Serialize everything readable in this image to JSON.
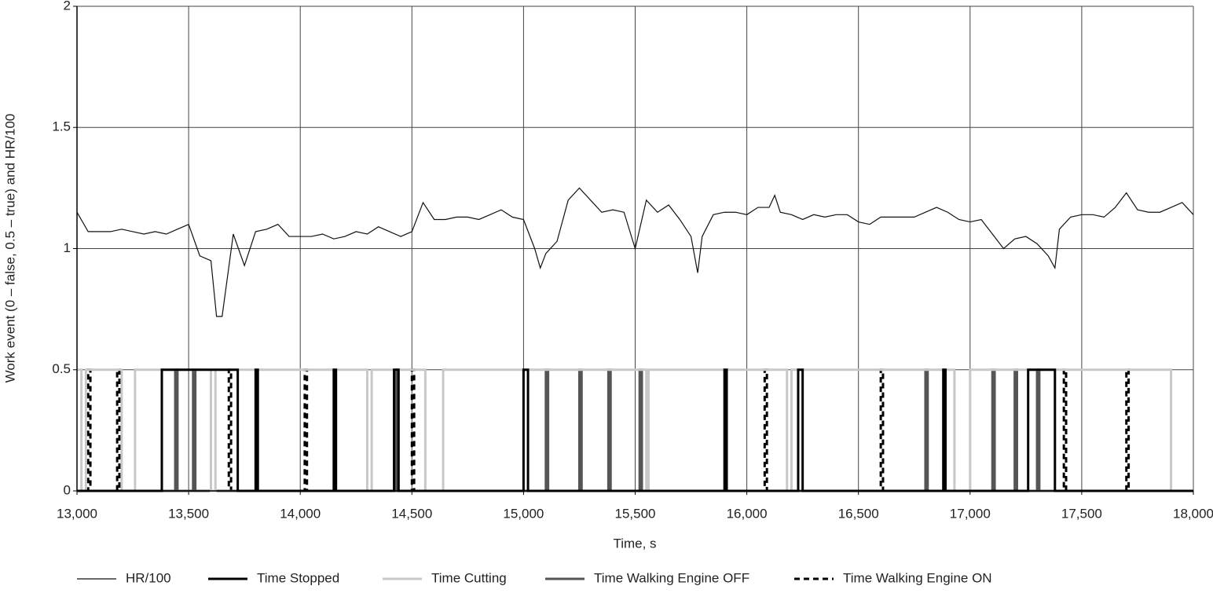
{
  "chart_data": {
    "type": "line",
    "x_label": "Time, s",
    "y_label": "Work event (0 – false, 0.5 – true) and HR/100",
    "xlim": [
      13000,
      18000
    ],
    "xticks": [
      {
        "value": 13000,
        "label": "13,000"
      },
      {
        "value": 13500,
        "label": "13,500"
      },
      {
        "value": 14000,
        "label": "14,000"
      },
      {
        "value": 14500,
        "label": "14,500"
      },
      {
        "value": 15000,
        "label": "15,000"
      },
      {
        "value": 15500,
        "label": "15,500"
      },
      {
        "value": 16000,
        "label": "16,000"
      },
      {
        "value": 16500,
        "label": "16,500"
      },
      {
        "value": 17000,
        "label": "17,000"
      },
      {
        "value": 17500,
        "label": "17,500"
      },
      {
        "value": 18000,
        "label": "18,000"
      }
    ],
    "ylim": [
      0,
      2
    ],
    "yticks": [
      0,
      0.5,
      1,
      1.5,
      2
    ],
    "grid": true,
    "legend": "bottom",
    "series": [
      {
        "name": "HR/100",
        "color": "#111111",
        "step": false,
        "x": [
          13000,
          13050,
          13100,
          13150,
          13200,
          13250,
          13300,
          13350,
          13400,
          13450,
          13500,
          13550,
          13600,
          13625,
          13650,
          13700,
          13750,
          13800,
          13850,
          13900,
          13950,
          14000,
          14050,
          14100,
          14150,
          14200,
          14250,
          14300,
          14350,
          14400,
          14450,
          14500,
          14550,
          14600,
          14650,
          14700,
          14750,
          14800,
          14850,
          14900,
          14950,
          15000,
          15050,
          15075,
          15100,
          15150,
          15200,
          15250,
          15300,
          15350,
          15400,
          15450,
          15500,
          15550,
          15600,
          15650,
          15700,
          15750,
          15780,
          15800,
          15850,
          15900,
          15950,
          16000,
          16050,
          16100,
          16125,
          16150,
          16200,
          16250,
          16300,
          16350,
          16400,
          16450,
          16500,
          16550,
          16600,
          16650,
          16700,
          16750,
          16800,
          16850,
          16900,
          16950,
          17000,
          17050,
          17100,
          17150,
          17200,
          17250,
          17300,
          17350,
          17380,
          17400,
          17450,
          17500,
          17550,
          17600,
          17650,
          17700,
          17750,
          17800,
          17850,
          17900,
          17950,
          18000
        ],
        "values": [
          1.15,
          1.07,
          1.07,
          1.07,
          1.08,
          1.07,
          1.06,
          1.07,
          1.06,
          1.08,
          1.1,
          0.97,
          0.95,
          0.72,
          0.72,
          1.06,
          0.93,
          1.07,
          1.08,
          1.1,
          1.05,
          1.05,
          1.05,
          1.06,
          1.04,
          1.05,
          1.07,
          1.06,
          1.09,
          1.07,
          1.05,
          1.07,
          1.19,
          1.12,
          1.12,
          1.13,
          1.13,
          1.12,
          1.14,
          1.16,
          1.13,
          1.12,
          1.0,
          0.92,
          0.98,
          1.03,
          1.2,
          1.25,
          1.2,
          1.15,
          1.16,
          1.15,
          1.0,
          1.2,
          1.15,
          1.18,
          1.12,
          1.05,
          0.9,
          1.05,
          1.14,
          1.15,
          1.15,
          1.14,
          1.17,
          1.17,
          1.22,
          1.15,
          1.14,
          1.12,
          1.14,
          1.13,
          1.14,
          1.14,
          1.11,
          1.1,
          1.13,
          1.13,
          1.13,
          1.13,
          1.15,
          1.17,
          1.15,
          1.12,
          1.11,
          1.12,
          1.06,
          1.0,
          1.04,
          1.05,
          1.02,
          0.97,
          0.92,
          1.08,
          1.13,
          1.14,
          1.14,
          1.13,
          1.17,
          1.23,
          1.16,
          1.15,
          1.15,
          1.17,
          1.19,
          1.14
        ]
      },
      {
        "name": "Time Stopped",
        "color": "#000000",
        "step": true,
        "x": [
          13000,
          13380,
          13720,
          13800,
          13810,
          14150,
          14160,
          14420,
          14440,
          15000,
          15020,
          15900,
          15910,
          16230,
          16250,
          16880,
          16890,
          17260,
          17380,
          18000
        ],
        "values": [
          0,
          0.5,
          0,
          0.5,
          0,
          0.5,
          0,
          0.5,
          0,
          0.5,
          0,
          0.5,
          0,
          0.5,
          0,
          0.5,
          0,
          0.5,
          0,
          0
        ]
      },
      {
        "name": "Time Cutting",
        "color": "#c8c8c8",
        "step": true,
        "x": [
          13000,
          13020,
          13040,
          13200,
          13260,
          13600,
          13620,
          14300,
          14320,
          14560,
          14640,
          15550,
          15560,
          16180,
          16200,
          16930,
          17000,
          17900,
          18000
        ],
        "values": [
          0.5,
          0,
          0.5,
          0,
          0.5,
          0,
          0.5,
          0,
          0.5,
          0,
          0.5,
          0,
          0.5,
          0,
          0.5,
          0,
          0.5,
          0,
          0
        ]
      },
      {
        "name": "Time Walking Engine OFF",
        "color": "#555555",
        "step": true,
        "x": [
          13000,
          13440,
          13450,
          13520,
          13530,
          14430,
          14440,
          15100,
          15110,
          15250,
          15260,
          15380,
          15390,
          15520,
          15530,
          16800,
          16810,
          17100,
          17110,
          17200,
          17210,
          17300,
          17310,
          18000
        ],
        "values": [
          0,
          0.5,
          0,
          0.5,
          0,
          0.5,
          0,
          0.5,
          0,
          0.5,
          0,
          0.5,
          0,
          0.5,
          0,
          0.5,
          0,
          0.5,
          0,
          0.5,
          0,
          0.5,
          0,
          0
        ]
      },
      {
        "name": "Time Walking Engine ON",
        "color": "#000000",
        "step": true,
        "dashed": true,
        "x": [
          13000,
          13050,
          13060,
          13180,
          13190,
          13680,
          13690,
          14020,
          14030,
          14500,
          14510,
          16080,
          16090,
          16600,
          16610,
          17420,
          17430,
          17700,
          17710,
          18000
        ],
        "values": [
          0,
          0.5,
          0,
          0.5,
          0,
          0.5,
          0,
          0.5,
          0,
          0.5,
          0,
          0.5,
          0,
          0.5,
          0,
          0.5,
          0,
          0.5,
          0,
          0
        ]
      }
    ]
  }
}
